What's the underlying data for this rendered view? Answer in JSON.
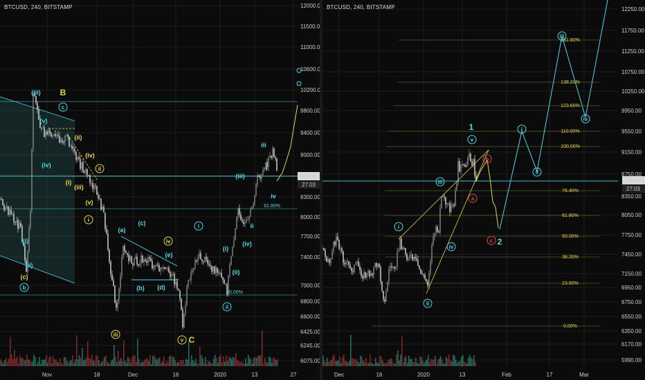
{
  "left": {
    "title": "BTCUSD, 240, BITSTAMP",
    "price_label": "8646.97",
    "time_label": "27:03",
    "y_ticks": [
      "12000.00",
      "11500.00",
      "11000.00",
      "10600.00",
      "10200.00",
      "9800.00",
      "9400.00",
      "9000.00",
      "8650.00",
      "8300.00",
      "8000.00",
      "7700.00",
      "7400.00",
      "7000.00",
      "6800.00",
      "6600.00",
      "6425.00",
      "6245.00",
      "6075.00"
    ],
    "x_ticks": [
      "Nov",
      "18",
      "Dec",
      "16",
      "2020",
      "13",
      "27"
    ],
    "waves": [
      {
        "t": "(iii)",
        "c": "cyan"
      },
      {
        "t": "B",
        "c": "yellow"
      },
      {
        "t": "c",
        "c": "cyan",
        "circle": true
      },
      {
        "t": "(v)",
        "c": "cyan"
      },
      {
        "t": "(iv)",
        "c": "cyan"
      },
      {
        "t": "(ii)",
        "c": "yellow"
      },
      {
        "t": "(iv)",
        "c": "yellow"
      },
      {
        "t": "ii",
        "c": "yellow",
        "circle": true
      },
      {
        "t": "(i)",
        "c": "yellow"
      },
      {
        "t": "(iii)",
        "c": "yellow"
      },
      {
        "t": "(v)",
        "c": "yellow"
      },
      {
        "t": "i",
        "c": "yellow",
        "circle": true
      },
      {
        "t": "(i)",
        "c": "cyan"
      },
      {
        "t": "(ii)",
        "c": "cyan"
      },
      {
        "t": "(c)",
        "c": "yellow"
      },
      {
        "t": "b",
        "c": "cyan",
        "circle": true
      },
      {
        "t": "(a)",
        "c": "cyan"
      },
      {
        "t": "(c)",
        "c": "cyan"
      },
      {
        "t": "iv",
        "c": "yellow",
        "circle": true
      },
      {
        "t": "(e)",
        "c": "cyan"
      },
      {
        "t": "(b)",
        "c": "cyan"
      },
      {
        "t": "(d)",
        "c": "cyan"
      },
      {
        "t": "iii",
        "c": "yellow",
        "circle": true
      },
      {
        "t": "v",
        "c": "yellow",
        "circle": true
      },
      {
        "t": "C",
        "c": "yellow"
      },
      {
        "t": "i",
        "c": "cyan",
        "circle": true
      },
      {
        "t": "(iii)",
        "c": "cyan"
      },
      {
        "t": "(i)",
        "c": "cyan"
      },
      {
        "t": "(ii)",
        "c": "cyan"
      },
      {
        "t": "(iv)",
        "c": "cyan"
      },
      {
        "t": "ii",
        "c": "cyan",
        "circle": true
      },
      {
        "t": "iii",
        "c": "cyan"
      },
      {
        "t": "i",
        "c": "cyan"
      },
      {
        "t": "ii",
        "c": "cyan"
      },
      {
        "t": "iv",
        "c": "cyan"
      }
    ],
    "fib_labels": [
      "61.80%",
      "50.00%"
    ]
  },
  "right": {
    "title": "BTCUSD, 240, BITSTAMP",
    "price_label": "8646.97",
    "time_label": "27:03",
    "y_ticks": [
      "12250.00",
      "11750.00",
      "11250.00",
      "10750.00",
      "10250.00",
      "9950.00",
      "9550.00",
      "9150.00",
      "8750.00",
      "8350.00",
      "8050.00",
      "7750.00",
      "7450.00",
      "7150.00",
      "6950.00",
      "6750.00",
      "6550.00",
      "6350.00",
      "6170.00",
      "5990.00"
    ],
    "x_ticks": [
      "Dec",
      "16",
      "2020",
      "13",
      "Feb",
      "17",
      "Mar"
    ],
    "fib_levels": [
      "161.80%",
      "138.20%",
      "123.60%",
      "110.00%",
      "100.00%",
      "76.40%",
      "61.80%",
      "50.00%",
      "38.20%",
      "23.60%",
      "0.00%"
    ],
    "waves": [
      {
        "t": "i",
        "c": "cyan",
        "circle": true
      },
      {
        "t": "iii",
        "c": "cyan",
        "circle": true
      },
      {
        "t": "iv",
        "c": "cyan",
        "circle": true
      },
      {
        "t": "ii",
        "c": "cyan",
        "circle": true
      },
      {
        "t": "v",
        "c": "cyan",
        "circle": true
      },
      {
        "t": "1",
        "c": "cyan"
      },
      {
        "t": "b",
        "c": "red",
        "circle": true
      },
      {
        "t": "a",
        "c": "red",
        "circle": true
      },
      {
        "t": "c",
        "c": "red",
        "circle": true
      },
      {
        "t": "2",
        "c": "cyan"
      },
      {
        "t": "i",
        "c": "cyan",
        "circle": true
      },
      {
        "t": "ii",
        "c": "cyan",
        "circle": true
      },
      {
        "t": "iii",
        "c": "cyan",
        "circle": true
      },
      {
        "t": "iv",
        "c": "cyan",
        "circle": true
      }
    ]
  },
  "colors": {
    "cyan": "#4fd8e8",
    "yellow": "#e6d84a",
    "red": "#e24a4a",
    "up": "#bdbdbd",
    "down": "#cfcfcf",
    "grid": "#1c1c1c",
    "fib": "#b8b030",
    "price": "#4fb8c8"
  }
}
